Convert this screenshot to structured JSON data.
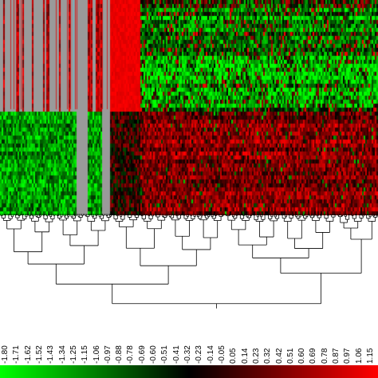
{
  "chart_data": {
    "type": "heatmap",
    "title": "",
    "xlabel": "",
    "ylabel": "",
    "colorscale": {
      "low_color": "#00ff00",
      "mid_color": "#000000",
      "high_color": "#ff0000",
      "missing_color": "#9a9a9a",
      "range": [
        -1.8,
        1.15
      ]
    },
    "scale_ticks": [
      "-1.80",
      "-1.71",
      "-1.62",
      "-1.52",
      "-1.43",
      "-1.34",
      "-1.25",
      "-1.15",
      "-1.06",
      "-0.97",
      "-0.88",
      "-0.78",
      "-0.69",
      "-0.60",
      "-0.51",
      "-0.41",
      "-0.32",
      "-0.23",
      "-0.14",
      "-0.05",
      "0.05",
      "0.14",
      "0.23",
      "0.32",
      "0.42",
      "0.51",
      "0.60",
      "0.69",
      "0.78",
      "0.87",
      "0.97",
      "1.06",
      "1.15"
    ],
    "column_dendrogram": true,
    "row_blocks": [
      {
        "name": "upper",
        "rows": 14
      },
      {
        "name": "lower",
        "rows": 13
      }
    ],
    "column_blocks": [
      {
        "name": "mostly-missing",
        "columns": 70
      },
      {
        "name": "red-band",
        "columns": 8
      },
      {
        "name": "main",
        "columns": 140
      }
    ]
  }
}
